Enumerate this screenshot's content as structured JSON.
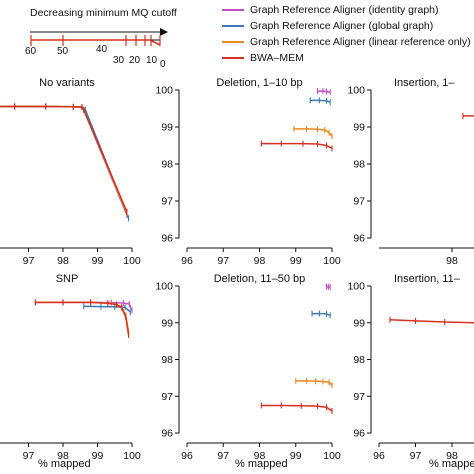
{
  "colors": {
    "identity": "#c24fc8",
    "global": "#3c7ab6",
    "linear": "#ec8a1d",
    "bwa": "#d7301f",
    "axis": "#111111"
  },
  "legend": [
    {
      "key": "identity",
      "label": "Graph Reference Aligner (identity graph)"
    },
    {
      "key": "global",
      "label": "Graph Reference Aligner (global graph)"
    },
    {
      "key": "linear",
      "label": "Graph Reference Aligner (linear reference only)"
    },
    {
      "key": "bwa",
      "label": "BWA–MEM"
    }
  ],
  "cutoff_scale": {
    "title": "Decreasing minimum MQ cutoff",
    "ticks": [
      "60",
      "50",
      "40",
      "30",
      "20",
      "10",
      "0"
    ]
  },
  "x_axis_label": "% mapped",
  "chart_data": [
    {
      "type": "line",
      "title": "No variants",
      "xlabel": "",
      "ylabel": "",
      "xlim": [
        96,
        100
      ],
      "ylim": [
        96,
        100.5
      ],
      "xticks": [
        "6",
        "97",
        "98",
        "99",
        "100"
      ],
      "yticks": [],
      "series": [
        {
          "key": "identity",
          "x": [
            96.0,
            96.6,
            97.5,
            98.3,
            98.55,
            98.6,
            99.85
          ],
          "y": [
            100.0,
            100.0,
            100.0,
            99.99,
            99.98,
            99.9,
            96.7
          ]
        },
        {
          "key": "global",
          "x": [
            96.0,
            96.6,
            97.5,
            98.3,
            98.55,
            98.65,
            99.9
          ],
          "y": [
            100.0,
            100.0,
            100.0,
            99.99,
            99.98,
            99.9,
            96.6
          ]
        },
        {
          "key": "linear",
          "x": [
            96.0,
            96.6,
            97.5,
            98.3,
            98.55,
            98.6,
            99.85
          ],
          "y": [
            100.0,
            100.0,
            100.0,
            99.99,
            99.98,
            99.9,
            96.75
          ]
        },
        {
          "key": "bwa",
          "x": [
            96.0,
            96.6,
            97.5,
            98.3,
            98.55,
            98.6,
            99.85
          ],
          "y": [
            100.0,
            100.0,
            100.0,
            99.99,
            99.98,
            99.9,
            96.8
          ]
        }
      ]
    },
    {
      "type": "line",
      "title": "Deletion, 1–10 bp",
      "xlabel": "",
      "ylabel": "",
      "xlim": [
        96,
        100
      ],
      "ylim": [
        96,
        100
      ],
      "xticks": [
        "96",
        "97",
        "98",
        "99",
        "100"
      ],
      "yticks": [
        "96",
        "97",
        "98",
        "99",
        "100"
      ],
      "series": [
        {
          "key": "identity",
          "x": [
            99.6,
            99.75,
            99.85,
            99.95
          ],
          "y": [
            99.97,
            99.97,
            99.96,
            99.94
          ]
        },
        {
          "key": "global",
          "x": [
            99.4,
            99.65,
            99.85,
            99.95
          ],
          "y": [
            99.72,
            99.72,
            99.71,
            99.67
          ]
        },
        {
          "key": "linear",
          "x": [
            98.95,
            99.3,
            99.6,
            99.8,
            99.92,
            100.0
          ],
          "y": [
            98.95,
            98.95,
            98.94,
            98.92,
            98.85,
            98.75
          ]
        },
        {
          "key": "bwa",
          "x": [
            98.05,
            98.6,
            99.2,
            99.6,
            99.85,
            100.0
          ],
          "y": [
            98.55,
            98.55,
            98.55,
            98.54,
            98.5,
            98.42
          ]
        }
      ]
    },
    {
      "type": "line",
      "title": "Insertion, 1–",
      "xlabel": "",
      "ylabel": "",
      "xlim": [
        96,
        100
      ],
      "ylim": [
        96,
        100
      ],
      "xticks": [
        "98"
      ],
      "yticks": [
        "96",
        "97",
        "98",
        "99",
        "100"
      ],
      "series": [
        {
          "key": "bwa",
          "x": [
            98.3,
            98.8
          ],
          "y": [
            99.3,
            99.3
          ]
        }
      ]
    },
    {
      "type": "line",
      "title": "SNP",
      "xlabel": "% mapped",
      "ylabel": "",
      "xlim": [
        96,
        100
      ],
      "ylim": [
        96,
        100.5
      ],
      "xticks": [
        "6",
        "97",
        "98",
        "99",
        "100"
      ],
      "yticks": [],
      "series": [
        {
          "key": "identity",
          "x": [
            97.2,
            98.0,
            98.8,
            99.4,
            99.75,
            99.92,
            100.0
          ],
          "y": [
            100.0,
            100.0,
            100.0,
            99.99,
            99.98,
            99.95,
            99.75
          ]
        },
        {
          "key": "global",
          "x": [
            98.6,
            99.1,
            99.5,
            99.8,
            99.95
          ],
          "y": [
            99.88,
            99.87,
            99.86,
            99.85,
            99.7
          ]
        },
        {
          "key": "linear",
          "x": [
            97.2,
            98.0,
            98.8,
            99.3,
            99.55,
            99.7,
            99.82,
            99.9
          ],
          "y": [
            100.0,
            100.0,
            100.0,
            99.98,
            99.94,
            99.86,
            99.6,
            99.1
          ]
        },
        {
          "key": "bwa",
          "x": [
            97.2,
            98.0,
            98.8,
            99.3,
            99.55,
            99.7,
            99.82,
            99.9
          ],
          "y": [
            100.0,
            100.0,
            100.0,
            99.97,
            99.93,
            99.84,
            99.55,
            99.0
          ]
        }
      ]
    },
    {
      "type": "line",
      "title": "Deletion, 11–50 bp",
      "xlabel": "% mapped",
      "ylabel": "",
      "xlim": [
        96,
        100
      ],
      "ylim": [
        96,
        100
      ],
      "xticks": [
        "96",
        "97",
        "98",
        "99",
        "100"
      ],
      "yticks": [
        "96",
        "97",
        "98",
        "99",
        "100"
      ],
      "series": [
        {
          "key": "identity",
          "x": [
            99.85,
            99.9,
            99.95
          ],
          "y": [
            99.98,
            99.98,
            99.97
          ]
        },
        {
          "key": "global",
          "x": [
            99.45,
            99.65,
            99.85,
            99.95
          ],
          "y": [
            99.25,
            99.25,
            99.24,
            99.2
          ]
        },
        {
          "key": "linear",
          "x": [
            99.0,
            99.3,
            99.55,
            99.75,
            99.92,
            100.0
          ],
          "y": [
            97.42,
            97.42,
            97.41,
            97.4,
            97.38,
            97.3
          ]
        },
        {
          "key": "bwa",
          "x": [
            98.05,
            98.6,
            99.15,
            99.6,
            99.85,
            100.0
          ],
          "y": [
            96.75,
            96.75,
            96.74,
            96.73,
            96.7,
            96.6
          ]
        }
      ]
    },
    {
      "type": "line",
      "title": "Insertion, 11–",
      "xlabel": "% mapped",
      "ylabel": "",
      "xlim": [
        96,
        100
      ],
      "ylim": [
        96,
        100
      ],
      "xticks": [
        "96",
        "97",
        "98"
      ],
      "yticks": [
        "96",
        "97",
        "98",
        "99",
        "100"
      ],
      "series": [
        {
          "key": "bwa",
          "x": [
            96.3,
            97.0,
            97.8,
            98.6,
            99.0
          ],
          "y": [
            99.08,
            99.05,
            99.02,
            99.0,
            98.98
          ]
        }
      ]
    }
  ]
}
